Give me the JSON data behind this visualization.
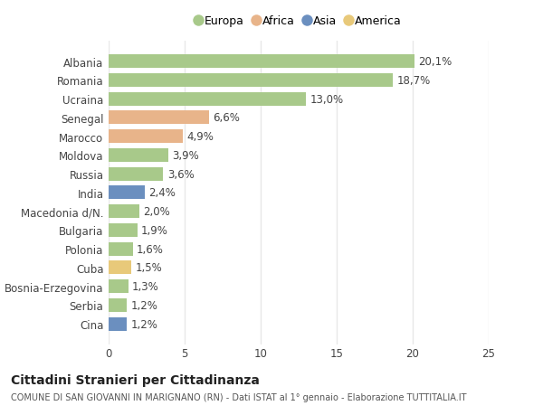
{
  "categories": [
    "Albania",
    "Romania",
    "Ucraina",
    "Senegal",
    "Marocco",
    "Moldova",
    "Russia",
    "India",
    "Macedonia d/N.",
    "Bulgaria",
    "Polonia",
    "Cuba",
    "Bosnia-Erzegovina",
    "Serbia",
    "Cina"
  ],
  "values": [
    20.1,
    18.7,
    13.0,
    6.6,
    4.9,
    3.9,
    3.6,
    2.4,
    2.0,
    1.9,
    1.6,
    1.5,
    1.3,
    1.2,
    1.2
  ],
  "labels": [
    "20,1%",
    "18,7%",
    "13,0%",
    "6,6%",
    "4,9%",
    "3,9%",
    "3,6%",
    "2,4%",
    "2,0%",
    "1,9%",
    "1,6%",
    "1,5%",
    "1,3%",
    "1,2%",
    "1,2%"
  ],
  "continents": [
    "Europa",
    "Europa",
    "Europa",
    "Africa",
    "Africa",
    "Europa",
    "Europa",
    "Asia",
    "Europa",
    "Europa",
    "Europa",
    "America",
    "Europa",
    "Europa",
    "Asia"
  ],
  "continent_colors": {
    "Europa": "#a8c98a",
    "Africa": "#e8b48a",
    "Asia": "#6b8fbf",
    "America": "#e8c97a"
  },
  "legend_items": [
    "Europa",
    "Africa",
    "Asia",
    "America"
  ],
  "xlim": [
    0,
    25
  ],
  "xticks": [
    0,
    5,
    10,
    15,
    20,
    25
  ],
  "title": "Cittadini Stranieri per Cittadinanza",
  "subtitle": "COMUNE DI SAN GIOVANNI IN MARIGNANO (RN) - Dati ISTAT al 1° gennaio - Elaborazione TUTTITALIA.IT",
  "background_color": "#ffffff",
  "bar_height": 0.72,
  "grid_color": "#e8e8e8",
  "label_fontsize": 8.5,
  "tick_fontsize": 8.5,
  "title_fontsize": 10,
  "subtitle_fontsize": 7
}
